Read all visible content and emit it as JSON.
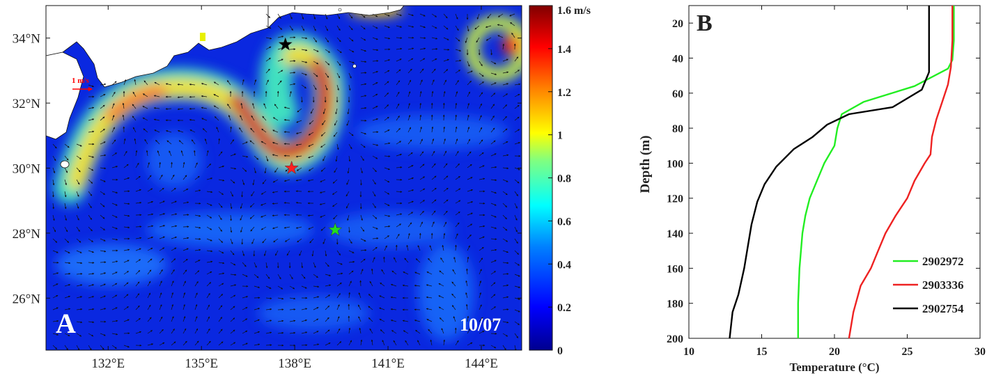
{
  "chart_data": [
    {
      "panel": "A",
      "type": "heatmap",
      "title": "",
      "panel_label": "A",
      "date_label": "10/07",
      "xlim": [
        130.0,
        145.3
      ],
      "ylim": [
        24.4,
        35.0
      ],
      "x_ticks": [
        132,
        135,
        138,
        141,
        144
      ],
      "x_tick_labels": [
        "132°E",
        "135°E",
        "138°E",
        "141°E",
        "144°E"
      ],
      "y_ticks": [
        26,
        28,
        30,
        32,
        34
      ],
      "y_tick_labels": [
        "26°N",
        "28°N",
        "30°N",
        "32°N",
        "34°N"
      ],
      "colorbar": {
        "label": "m/s",
        "range": [
          0,
          1.6
        ],
        "ticks": [
          0,
          0.2,
          0.4,
          0.6,
          0.8,
          1,
          1.2,
          1.4,
          1.6
        ],
        "tick_labels": [
          "0",
          "0.2",
          "0.4",
          "0.6",
          "0.8",
          "1",
          "1.2",
          "1.4",
          "1.6 m/s"
        ],
        "colormap": [
          "#00008f",
          "#0000ff",
          "#0080ff",
          "#00ffff",
          "#80ff80",
          "#ffff00",
          "#ff8000",
          "#ff0000",
          "#800000"
        ]
      },
      "reference_vector": {
        "label": "1 m/s",
        "speed": 1.0,
        "color": "#ff0000"
      },
      "markers": [
        {
          "lon": 137.7,
          "lat": 33.8,
          "color": "#000000",
          "shape": "star"
        },
        {
          "lon": 137.9,
          "lat": 30.0,
          "color": "#ff2020",
          "shape": "star"
        },
        {
          "lon": 139.3,
          "lat": 28.1,
          "color": "#22dd22",
          "shape": "star"
        }
      ]
    },
    {
      "panel": "B",
      "type": "line",
      "title": "",
      "panel_label": "B",
      "xlabel": "Temperature (°C)",
      "ylabel": "Depth (m)",
      "xlim": [
        10,
        30
      ],
      "ylim": [
        10,
        200
      ],
      "y_reversed": true,
      "x_ticks": [
        10,
        15,
        20,
        25,
        30
      ],
      "x_tick_labels": [
        "10",
        "15",
        "20",
        "25",
        "30"
      ],
      "y_ticks": [
        20,
        40,
        60,
        80,
        100,
        120,
        140,
        160,
        180,
        200
      ],
      "y_tick_labels": [
        "20",
        "40",
        "60",
        "80",
        "100",
        "120",
        "140",
        "160",
        "180",
        "200"
      ],
      "legend_position": "bottom-right",
      "series": [
        {
          "name": "2902972",
          "color": "#22ee22",
          "x": [
            28.2,
            28.2,
            28.1,
            27.8,
            25.5,
            22.0,
            20.5,
            20.2,
            20.0,
            19.3,
            18.8,
            18.3,
            18.0,
            17.8,
            17.7,
            17.6,
            17.5,
            17.5
          ],
          "y": [
            10,
            30,
            41,
            46,
            56,
            65,
            72,
            80,
            90,
            100,
            110,
            120,
            130,
            140,
            150,
            160,
            180,
            200
          ]
        },
        {
          "name": "2903336",
          "color": "#ee2222",
          "x": [
            28.1,
            28.1,
            28.0,
            27.8,
            27.4,
            27.0,
            26.7,
            26.6,
            26.2,
            25.5,
            25.0,
            24.2,
            23.5,
            23.0,
            22.5,
            21.8,
            21.3,
            21.0
          ],
          "y": [
            10,
            30,
            45,
            55,
            65,
            75,
            85,
            95,
            100,
            110,
            120,
            130,
            140,
            150,
            160,
            170,
            185,
            200
          ]
        },
        {
          "name": "2902754",
          "color": "#000000",
          "x": [
            26.5,
            26.5,
            26.5,
            26.0,
            24.0,
            21.0,
            19.5,
            18.5,
            17.2,
            16.0,
            15.2,
            14.7,
            14.3,
            14.0,
            13.8,
            13.4,
            13.0,
            12.8
          ],
          "y": [
            10,
            30,
            48,
            58,
            68,
            72,
            78,
            85,
            92,
            102,
            112,
            122,
            135,
            150,
            160,
            175,
            185,
            200
          ]
        }
      ]
    }
  ]
}
